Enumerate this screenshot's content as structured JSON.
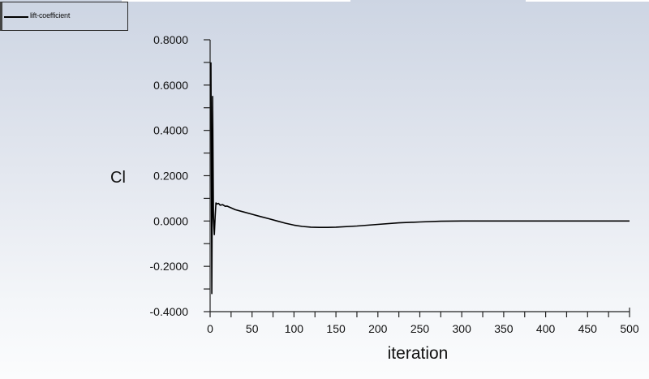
{
  "legend": {
    "entries": [
      {
        "label": "lift-coefficient",
        "color": "#000000"
      }
    ]
  },
  "axes": {
    "ylabel": "Cl",
    "xlabel": "iteration",
    "yticks": [
      "0.8000",
      "0.6000",
      "0.4000",
      "0.2000",
      "0.0000",
      "-0.2000",
      "-0.4000"
    ],
    "xticks": [
      "0",
      "50",
      "100",
      "150",
      "200",
      "250",
      "300",
      "350",
      "400",
      "450",
      "500"
    ]
  },
  "chart_data": {
    "type": "line",
    "title": "",
    "xlabel": "iteration",
    "ylabel": "Cl",
    "xlim": [
      0,
      500
    ],
    "ylim": [
      -0.4,
      0.8
    ],
    "x_major_ticks": [
      0,
      50,
      100,
      150,
      200,
      250,
      300,
      350,
      400,
      450,
      500
    ],
    "x_minor_step": 25,
    "y_major_ticks": [
      0.8,
      0.6,
      0.4,
      0.2,
      0.0,
      -0.2,
      -0.4
    ],
    "y_minor_step": 0.1,
    "grid": false,
    "legend_position": "top-left",
    "series": [
      {
        "name": "lift-coefficient",
        "color": "#000000",
        "x": [
          1,
          2,
          3,
          4,
          5,
          6,
          7,
          8,
          10,
          12,
          15,
          18,
          20,
          25,
          30,
          40,
          50,
          60,
          70,
          80,
          90,
          100,
          110,
          120,
          130,
          140,
          150,
          175,
          200,
          225,
          250,
          275,
          300,
          350,
          400,
          450,
          500
        ],
        "values": [
          0.7,
          -0.32,
          0.55,
          0.02,
          -0.06,
          0.02,
          0.08,
          0.075,
          0.078,
          0.07,
          0.072,
          0.065,
          0.066,
          0.058,
          0.05,
          0.04,
          0.03,
          0.02,
          0.01,
          0.0,
          -0.01,
          -0.018,
          -0.024,
          -0.027,
          -0.028,
          -0.028,
          -0.027,
          -0.022,
          -0.015,
          -0.008,
          -0.004,
          -0.001,
          0.0,
          0.0,
          0.0,
          0.0,
          0.0
        ]
      }
    ]
  }
}
